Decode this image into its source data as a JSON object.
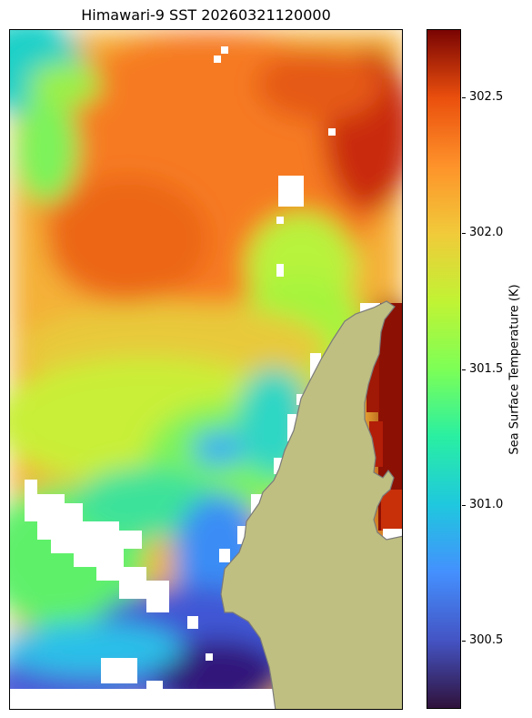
{
  "title": "Himawari-9 SST 20260321120000",
  "colorbar": {
    "label": "Sea Surface Temperature (K)",
    "colormap": "turbo",
    "vmin": 300.25,
    "vmax": 302.75,
    "ticks": [
      {
        "value": 300.5,
        "label": "300.5"
      },
      {
        "value": 301.0,
        "label": "301.0"
      },
      {
        "value": 301.5,
        "label": "301.5"
      },
      {
        "value": 302.0,
        "label": "302.0"
      },
      {
        "value": 302.5,
        "label": "302.5"
      }
    ]
  },
  "map": {
    "land_color": "#bfbf82",
    "coastline_color": "#7a7a7a",
    "missing_color": "#ffffff"
  }
}
